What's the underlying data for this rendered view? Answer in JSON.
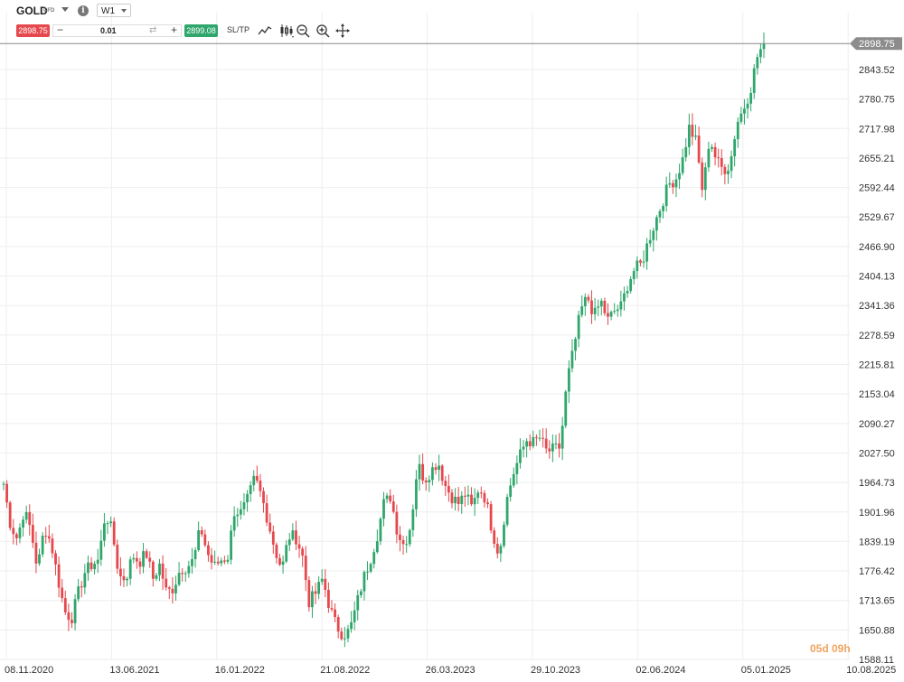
{
  "header": {
    "symbol": "GOLD",
    "symbol_type": "CFD",
    "timeframe": "W1",
    "sell_price": "2898.75",
    "quantity": "0.01",
    "minus_label": "−",
    "plus_label": "+",
    "buy_price": "2899.08",
    "sltp_label": "SL/TP",
    "info_label": "i",
    "swap_label": "⇄"
  },
  "countdown": "05d 09h",
  "colors": {
    "up": "#2fa66b",
    "down": "#e5484d",
    "grid": "#eeeeee",
    "price_line": "#888888",
    "current_tag": "#8c8c8c"
  },
  "chart_data": {
    "type": "candlestick",
    "timeframe": "W1",
    "current_price": "2898.75",
    "ylim": [
      1588.11,
      2930
    ],
    "y_ticks": [
      "2843.52",
      "2780.75",
      "2717.98",
      "2655.21",
      "2592.44",
      "2529.67",
      "2466.90",
      "2404.13",
      "2341.36",
      "2278.59",
      "2215.81",
      "2153.04",
      "2090.27",
      "2027.50",
      "1964.73",
      "1901.96",
      "1839.19",
      "1776.42",
      "1713.65",
      "1650.88",
      "1588.11"
    ],
    "x_ticks": [
      "08.11.2020",
      "13.06.2021",
      "16.01.2022",
      "21.08.2022",
      "26.03.2023",
      "29.10.2023",
      "02.06.2024",
      "05.01.2025",
      "10.08.2025"
    ],
    "anchors": [
      1962,
      1875,
      1845,
      1905,
      1865,
      1780,
      1870,
      1835,
      1760,
      1690,
      1675,
      1730,
      1775,
      1790,
      1800,
      1900,
      1860,
      1765,
      1760,
      1810,
      1795,
      1815,
      1760,
      1790,
      1730,
      1740,
      1780,
      1785,
      1800,
      1870,
      1815,
      1785,
      1800,
      1805,
      1905,
      1900,
      1930,
      1975,
      1935,
      1880,
      1820,
      1780,
      1850,
      1850,
      1810,
      1710,
      1730,
      1760,
      1700,
      1660,
      1640,
      1650,
      1705,
      1760,
      1800,
      1850,
      1920,
      1935,
      1860,
      1830,
      1875,
      2005,
      1970,
      1990,
      2010,
      1960,
      1935,
      1920,
      1940,
      1910,
      1955,
      1930,
      1860,
      1810,
      1920,
      1980,
      2020,
      2055,
      2050,
      2060,
      2030,
      2035,
      2040,
      2180,
      2250,
      2330,
      2360,
      2320,
      2350,
      2310,
      2330,
      2340,
      2390,
      2420,
      2430,
      2480,
      2520,
      2560,
      2600,
      2610,
      2650,
      2720,
      2690,
      2580,
      2700,
      2650,
      2630,
      2640,
      2730,
      2760,
      2800,
      2870,
      2900
    ],
    "seed": 7
  }
}
